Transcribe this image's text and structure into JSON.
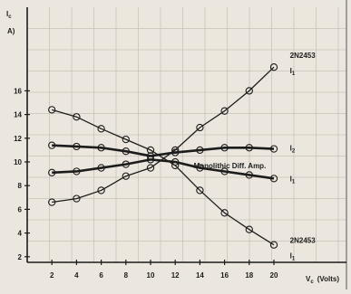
{
  "chart_data": {
    "type": "line",
    "y_axis_title_1": "I",
    "y_axis_title_sub": "c",
    "y_axis_title_2": "A)",
    "x_axis_title_main": "V",
    "x_axis_title_sub": "c",
    "x_axis_title_unit": "(Volts)",
    "x_ticks": [
      2,
      4,
      6,
      8,
      10,
      12,
      14,
      16,
      18,
      20
    ],
    "y_ticks": [
      2,
      4,
      6,
      8,
      10,
      12,
      14,
      16
    ],
    "xlim": [
      0,
      24
    ],
    "ylim": [
      0,
      19
    ],
    "grid": true,
    "x": [
      2,
      4,
      6,
      8,
      10,
      12,
      14,
      16,
      18,
      20
    ],
    "series": [
      {
        "values": [
          6.6,
          6.9,
          7.6,
          8.8,
          9.5,
          11.0,
          12.9,
          14.3,
          16.0,
          18.0
        ],
        "line_weight": "thin"
      },
      {
        "values": [
          14.4,
          13.8,
          12.8,
          11.9,
          11.0,
          9.7,
          7.6,
          5.7,
          4.3,
          3.0
        ],
        "line_weight": "thin"
      },
      {
        "values": [
          11.4,
          11.3,
          11.2,
          10.9,
          10.5,
          10.8,
          11.0,
          11.2,
          11.2,
          11.1
        ],
        "line_weight": "thick"
      },
      {
        "values": [
          9.1,
          9.2,
          9.5,
          9.8,
          10.2,
          10.0,
          9.5,
          9.2,
          8.9,
          8.6
        ],
        "line_weight": "thick"
      }
    ],
    "annotations": [
      {
        "text": "2N2453",
        "x": 21.3,
        "y": 19.0
      },
      {
        "text": "I",
        "sub": "1",
        "x": 21.3,
        "y": 17.7
      },
      {
        "text": "I",
        "sub": "2",
        "x": 21.3,
        "y": 11.2
      },
      {
        "text": "Monolithic Diff. Amp.",
        "x": 13.5,
        "y": 9.7
      },
      {
        "text": "I",
        "sub": "1",
        "x": 21.3,
        "y": 8.6
      },
      {
        "text": "2N2453",
        "x": 21.3,
        "y": 3.4
      },
      {
        "text": "I",
        "sub": "1",
        "x": 21.3,
        "y": 2.1
      }
    ],
    "colors": {
      "background": "#ece7de",
      "grid": "#c9c3b9",
      "ink": "#1c1c1c"
    }
  }
}
